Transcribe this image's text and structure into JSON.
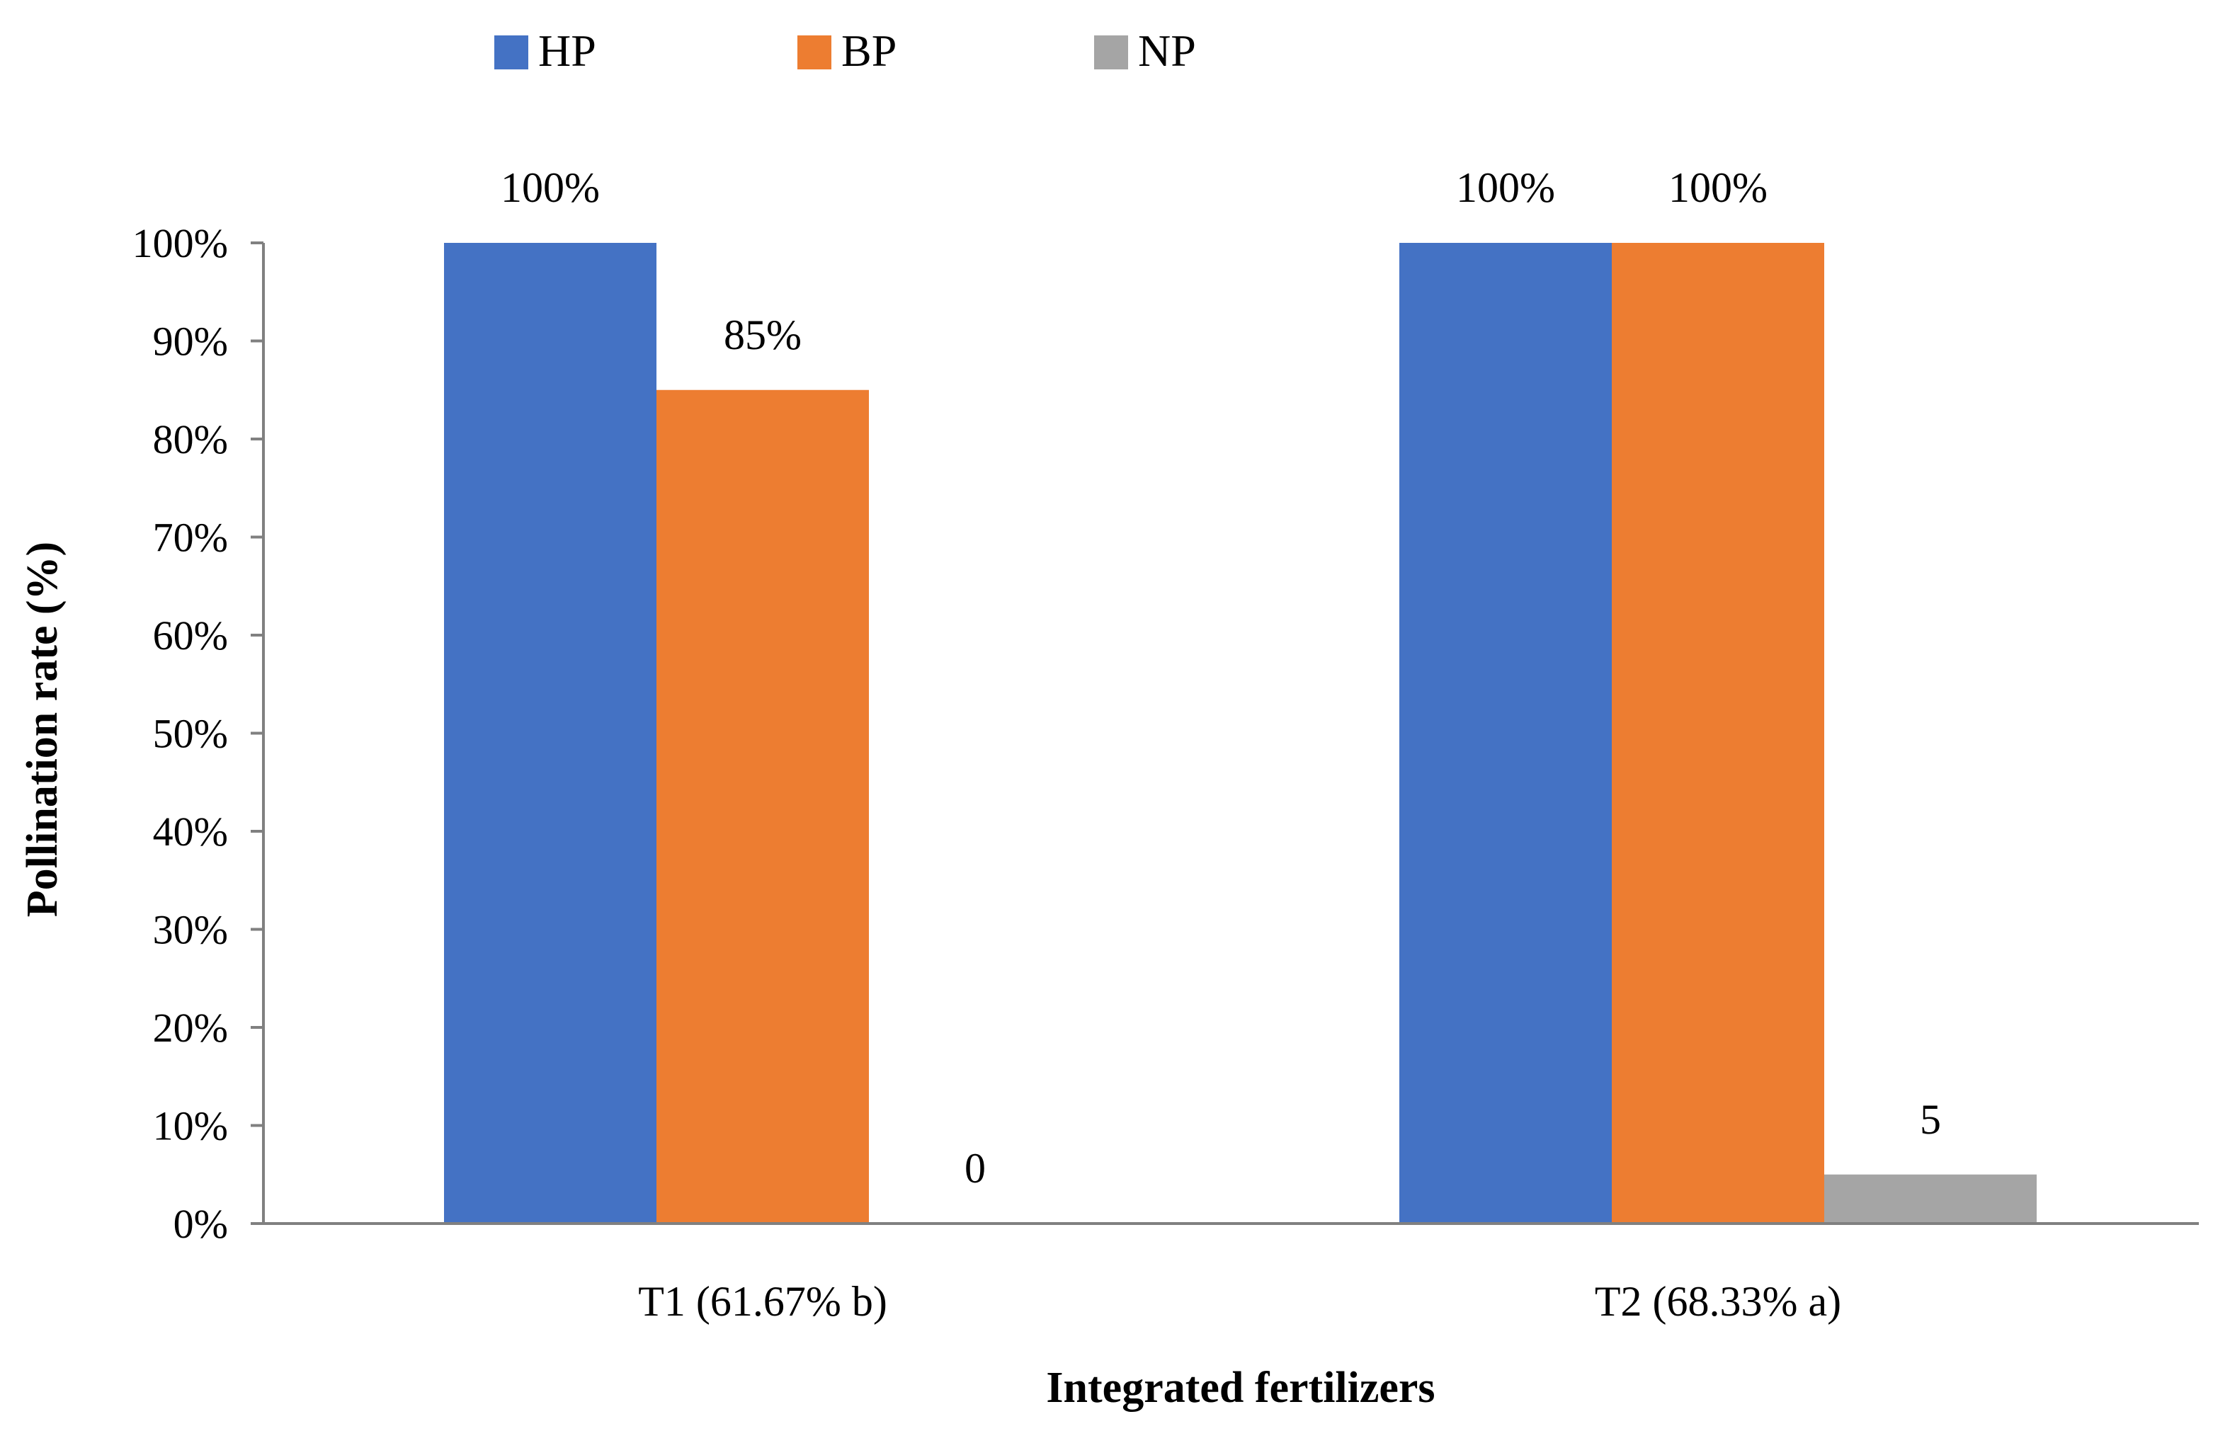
{
  "chart_data": {
    "type": "bar",
    "categories": [
      "T1 (61.67% b)",
      "T2 (68.33% a)"
    ],
    "series": [
      {
        "name": "HP",
        "color": "#4472C4",
        "values": [
          100,
          100
        ],
        "labels": [
          "100%",
          "100%"
        ]
      },
      {
        "name": "BP",
        "color": "#ED7D31",
        "values": [
          85,
          100
        ],
        "labels": [
          "85%",
          "100%"
        ]
      },
      {
        "name": "NP",
        "color": "#A5A5A5",
        "values": [
          0,
          5
        ],
        "labels": [
          "0",
          "5"
        ]
      }
    ],
    "xlabel": "Integrated fertilizers",
    "ylabel": "Pollination rate (%)",
    "ylim": [
      0,
      100
    ],
    "yticks": [
      "0%",
      "10%",
      "20%",
      "30%",
      "40%",
      "50%",
      "60%",
      "70%",
      "80%",
      "90%",
      "100%"
    ],
    "legend_position": "top",
    "grid": false
  }
}
